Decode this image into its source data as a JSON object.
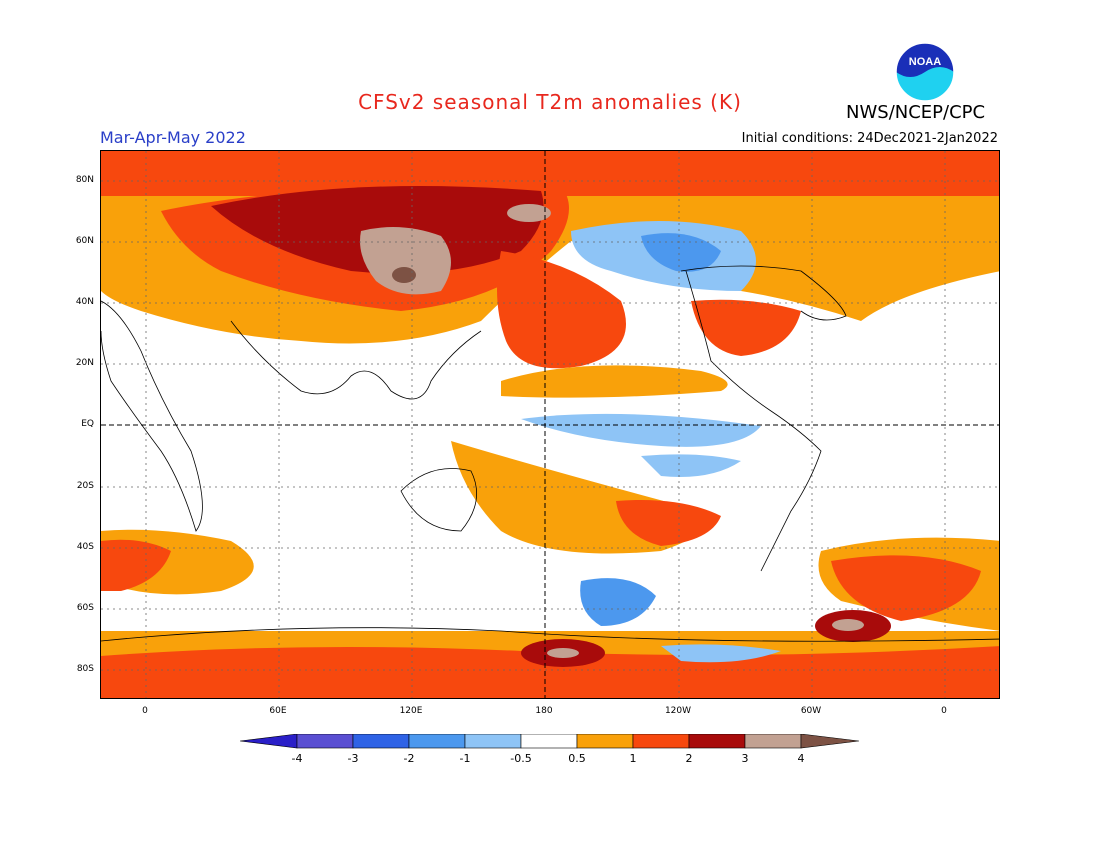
{
  "header": {
    "title": "CFSv2 seasonal T2m anomalies (K)",
    "org": "NWS/NCEP/CPC",
    "logo_text": "NOAA",
    "period": "Mar-Apr-May 2022",
    "initial_conditions": "Initial conditions: 24Dec2021-2Jan2022"
  },
  "map": {
    "lat_labels": [
      "80N",
      "60N",
      "40N",
      "20N",
      "EQ",
      "20S",
      "40S",
      "60S",
      "80S"
    ],
    "lon_labels": [
      "0",
      "60E",
      "120E",
      "180",
      "120W",
      "60W",
      "0"
    ]
  },
  "colorbar": {
    "labels": [
      "-4",
      "-3",
      "-2",
      "-1",
      "-0.5",
      "0.5",
      "1",
      "2",
      "3",
      "4"
    ],
    "colors": [
      "#2a1fc8",
      "#5a4fd2",
      "#2f63e6",
      "#4c98ee",
      "#8ec4f6",
      "#ffffff",
      "#f9a10a",
      "#f7480e",
      "#a80b0b",
      "#c2a192",
      "#7d5244"
    ]
  }
}
